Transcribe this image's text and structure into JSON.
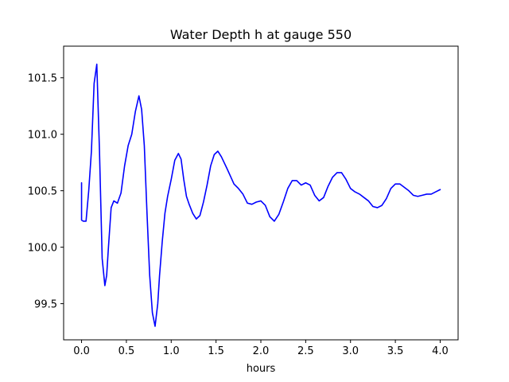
{
  "chart_data": {
    "type": "line",
    "title": "Water Depth h at gauge 550",
    "xlabel": "hours",
    "ylabel": "",
    "xlim": [
      -0.2,
      4.2
    ],
    "ylim": [
      99.18,
      101.78
    ],
    "xticks": [
      0.0,
      0.5,
      1.0,
      1.5,
      2.0,
      2.5,
      3.0,
      3.5,
      4.0
    ],
    "xtick_labels": [
      "0.0",
      "0.5",
      "1.0",
      "1.5",
      "2.0",
      "2.5",
      "3.0",
      "3.5",
      "4.0"
    ],
    "yticks": [
      99.5,
      100.0,
      100.5,
      101.0,
      101.5
    ],
    "ytick_labels": [
      "99.5",
      "100.0",
      "100.5",
      "101.0",
      "101.5"
    ],
    "grid": false,
    "series": [
      {
        "color": "#0000ff",
        "x": [
          0.0,
          0.0,
          0.02,
          0.05,
          0.08,
          0.11,
          0.14,
          0.17,
          0.2,
          0.23,
          0.26,
          0.28,
          0.3,
          0.33,
          0.36,
          0.4,
          0.44,
          0.48,
          0.52,
          0.56,
          0.6,
          0.64,
          0.67,
          0.7,
          0.73,
          0.76,
          0.79,
          0.82,
          0.85,
          0.87,
          0.9,
          0.93,
          0.96,
          1.0,
          1.04,
          1.08,
          1.11,
          1.14,
          1.17,
          1.2,
          1.24,
          1.28,
          1.32,
          1.36,
          1.4,
          1.44,
          1.48,
          1.52,
          1.56,
          1.59,
          1.62,
          1.66,
          1.7,
          1.75,
          1.8,
          1.85,
          1.9,
          1.95,
          2.0,
          2.05,
          2.1,
          2.15,
          2.2,
          2.25,
          2.3,
          2.35,
          2.4,
          2.45,
          2.5,
          2.55,
          2.6,
          2.65,
          2.7,
          2.75,
          2.8,
          2.85,
          2.9,
          2.95,
          3.0,
          3.05,
          3.1,
          3.15,
          3.2,
          3.25,
          3.3,
          3.35,
          3.4,
          3.45,
          3.5,
          3.55,
          3.6,
          3.65,
          3.7,
          3.75,
          3.8,
          3.85,
          3.9,
          3.95,
          4.0
        ],
        "y": [
          100.57,
          100.24,
          100.23,
          100.23,
          100.5,
          100.85,
          101.45,
          101.62,
          100.85,
          99.9,
          99.66,
          99.75,
          100.0,
          100.35,
          100.41,
          100.39,
          100.48,
          100.72,
          100.9,
          101.0,
          101.2,
          101.34,
          101.22,
          100.9,
          100.3,
          99.75,
          99.42,
          99.3,
          99.5,
          99.75,
          100.05,
          100.3,
          100.45,
          100.6,
          100.77,
          100.83,
          100.78,
          100.6,
          100.45,
          100.38,
          100.3,
          100.25,
          100.28,
          100.4,
          100.55,
          100.72,
          100.82,
          100.85,
          100.8,
          100.75,
          100.7,
          100.63,
          100.56,
          100.52,
          100.47,
          100.39,
          100.38,
          100.4,
          100.41,
          100.37,
          100.27,
          100.23,
          100.29,
          100.4,
          100.52,
          100.59,
          100.59,
          100.55,
          100.57,
          100.55,
          100.46,
          100.41,
          100.44,
          100.54,
          100.62,
          100.66,
          100.66,
          100.6,
          100.52,
          100.49,
          100.47,
          100.44,
          100.41,
          100.36,
          100.35,
          100.37,
          100.43,
          100.52,
          100.56,
          100.56,
          100.53,
          100.5,
          100.46,
          100.45,
          100.46,
          100.47,
          100.47,
          100.49,
          100.51
        ]
      }
    ]
  }
}
